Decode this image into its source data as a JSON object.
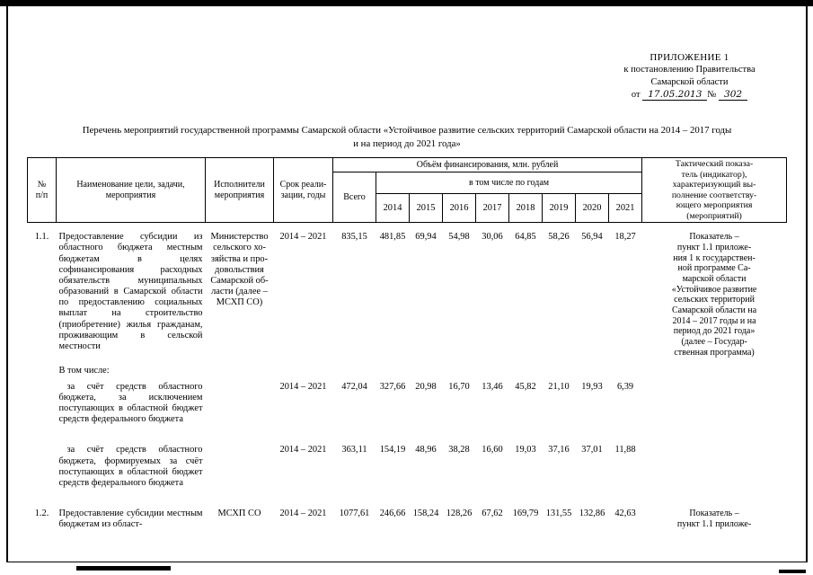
{
  "page": {
    "appendix": {
      "line1": "ПРИЛОЖЕНИЕ 1",
      "line2": "к постановлению Правительства",
      "line3": "Самарской области",
      "from_label": "от",
      "date": "17.05.2013",
      "number_label": "№",
      "number": "302"
    },
    "title": "Перечень мероприятий государственной программы Самарской области «Устойчивое развитие сельских территорий Самарской области на 2014 – 2017 годы\nи на период до 2021 года»"
  },
  "table": {
    "header": {
      "num": "№\nп/п",
      "name": "Наименование цели, задачи,\nмероприятия",
      "executors": "Исполнители\nмероприятия",
      "term": "Срок реали-\nзации, годы",
      "financing": "Объём финансирования, млн. рублей",
      "total": "Всего",
      "by_years": "в том числе по годам",
      "years": [
        "2014",
        "2015",
        "2016",
        "2017",
        "2018",
        "2019",
        "2020",
        "2021"
      ],
      "indicator": "Тактический показа-\nтель (индикатор),\nхарактеризующий вы-\nполнение соответству-\nющего мероприятия\n(мероприятий)"
    },
    "rows": [
      {
        "type": "main first",
        "num": "1.1.",
        "name": "Предоставление субсидии из областного бюджета местным бюджетам в целях софинансирования расходных обязательств муниципальных образований в Самарской области по предоставлению социальных выплат на строительство (приобретение) жилья гражданам, проживающим в сельской местности",
        "executor": "Министерство\nсельского хо-\nзяйства и про-\nдовольствия\nСамарской об-\nласти (далее –\nМСХП СО)",
        "term": "2014 – 2021",
        "total": "835,15",
        "years": [
          "481,85",
          "69,94",
          "54,98",
          "30,06",
          "64,85",
          "58,26",
          "56,94",
          "18,27"
        ],
        "indicator": "Показатель –\nпункт 1.1 приложе-\nния 1 к государствен-\nной программе Са-\nмарской области\n«Устойчивое развитие\nсельских территорий\nСамарской области на\n2014 – 2017 годы и на\nпериод до 2021 года»\n(далее – Государ-\nственная программа)"
      },
      {
        "type": "subheader",
        "num": "",
        "name": "В том числе:",
        "executor": "",
        "term": "",
        "total": "",
        "years": [
          "",
          "",
          "",
          "",
          "",
          "",
          "",
          ""
        ],
        "indicator": ""
      },
      {
        "type": "sub",
        "num": "",
        "name": "за счёт средств областного бюджета, за исключением поступающих в областной бюджет средств федерального бюджета",
        "executor": "",
        "term": "2014 – 2021",
        "total": "472,04",
        "years": [
          "327,66",
          "20,98",
          "16,70",
          "13,46",
          "45,82",
          "21,10",
          "19,93",
          "6,39"
        ],
        "indicator": ""
      },
      {
        "type": "sub gap",
        "num": "",
        "name": "за счёт средств областного бюджета, формируемых за счёт поступающих в областной бюджет средств федерального бюджета",
        "executor": "",
        "term": "2014 – 2021",
        "total": "363,11",
        "years": [
          "154,19",
          "48,96",
          "38,28",
          "16,60",
          "19,03",
          "37,16",
          "37,01",
          "11,88"
        ],
        "indicator": ""
      },
      {
        "type": "main gap",
        "num": "1.2.",
        "name": "Предоставление субсидии местным бюджетам из област-",
        "executor": "МСХП СО",
        "term": "2014 – 2021",
        "total": "1077,61",
        "years": [
          "246,66",
          "158,24",
          "128,26",
          "67,62",
          "169,79",
          "131,55",
          "132,86",
          "42,63"
        ],
        "indicator": "Показатель –\nпункт 1.1 приложе-"
      }
    ]
  }
}
